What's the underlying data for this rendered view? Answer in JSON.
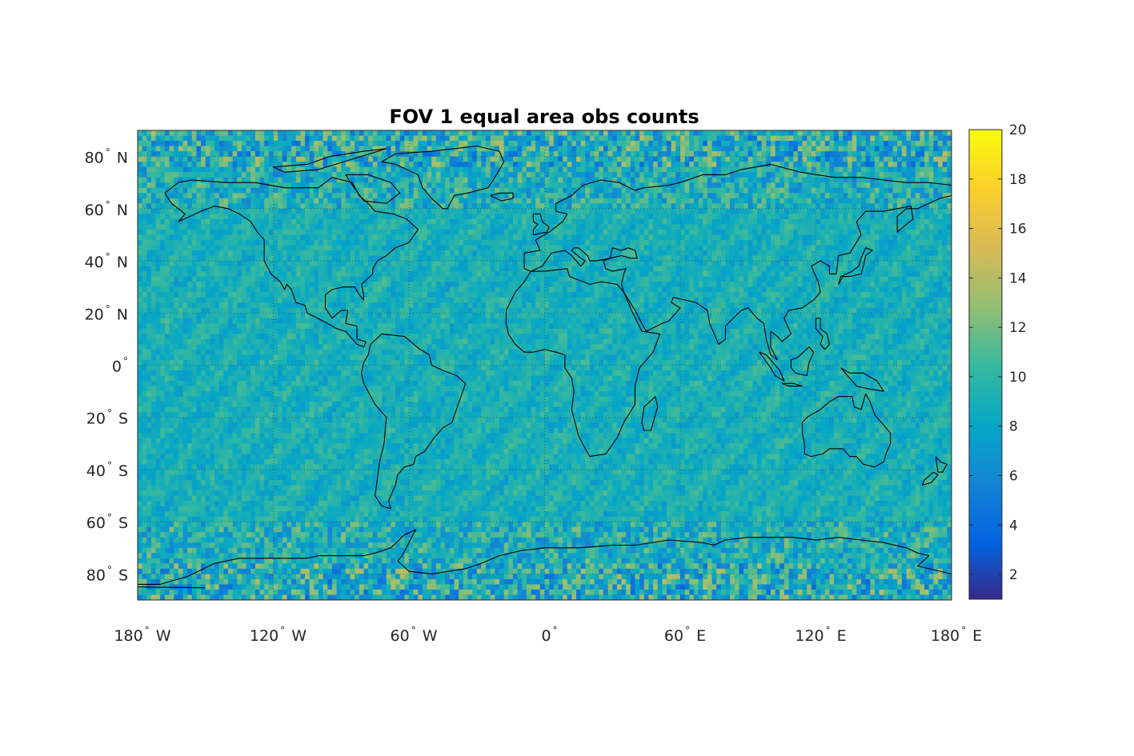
{
  "chart_data": {
    "type": "heatmap",
    "title": "FOV 1 equal area obs counts",
    "projection": "equirectangular",
    "x_range": [
      -180,
      180
    ],
    "y_range": [
      -90,
      90
    ],
    "x_ticks": [
      {
        "value": -180,
        "label": "180",
        "suffix": "W"
      },
      {
        "value": -120,
        "label": "120",
        "suffix": "W"
      },
      {
        "value": -60,
        "label": "60",
        "suffix": "W"
      },
      {
        "value": 0,
        "label": "0",
        "suffix": ""
      },
      {
        "value": 60,
        "label": "60",
        "suffix": "E"
      },
      {
        "value": 120,
        "label": "120",
        "suffix": "E"
      },
      {
        "value": 180,
        "label": "180",
        "suffix": "E"
      }
    ],
    "y_ticks": [
      {
        "value": 80,
        "label": "80",
        "suffix": "N"
      },
      {
        "value": 60,
        "label": "60",
        "suffix": "N"
      },
      {
        "value": 40,
        "label": "40",
        "suffix": "N"
      },
      {
        "value": 20,
        "label": "20",
        "suffix": "N"
      },
      {
        "value": 0,
        "label": "0",
        "suffix": ""
      },
      {
        "value": -20,
        "label": "20",
        "suffix": "S"
      },
      {
        "value": -40,
        "label": "40",
        "suffix": "S"
      },
      {
        "value": -60,
        "label": "60",
        "suffix": "S"
      },
      {
        "value": -80,
        "label": "80",
        "suffix": "S"
      }
    ],
    "colorbar": {
      "range": [
        1,
        20
      ],
      "ticks": [
        2,
        4,
        6,
        8,
        10,
        12,
        14,
        16,
        18,
        20
      ],
      "colormap": "parula",
      "location": "right"
    },
    "typical_value": 9,
    "grid": "dotted",
    "coastlines": true
  }
}
